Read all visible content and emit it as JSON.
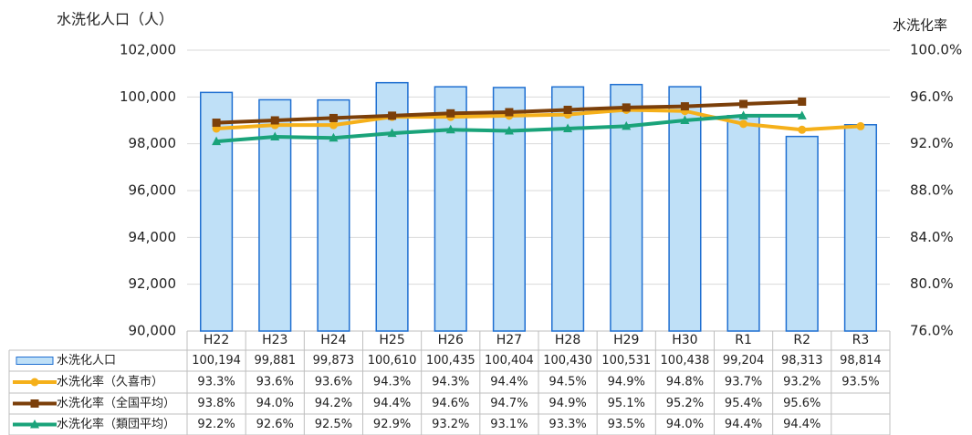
{
  "chart_data": {
    "type": "bar_line_table",
    "y_label": "水洗化人口（人）",
    "y2_label": "水洗化率",
    "categories": [
      "H22",
      "H23",
      "H24",
      "H25",
      "H26",
      "H27",
      "H28",
      "H29",
      "H30",
      "R1",
      "R2",
      "R3"
    ],
    "ylim": [
      90000,
      102000
    ],
    "yticks": [
      {
        "value": 90000,
        "label": "90,000"
      },
      {
        "value": 92000,
        "label": "92,000"
      },
      {
        "value": 94000,
        "label": "94,000"
      },
      {
        "value": 96000,
        "label": "96,000"
      },
      {
        "value": 98000,
        "label": "98,000"
      },
      {
        "value": 100000,
        "label": "100,000"
      },
      {
        "value": 102000,
        "label": "102,000"
      }
    ],
    "y2lim": [
      76,
      100
    ],
    "y2ticks": [
      {
        "value": 76,
        "label": "76.0%"
      },
      {
        "value": 80,
        "label": "80.0%"
      },
      {
        "value": 84,
        "label": "84.0%"
      },
      {
        "value": 88,
        "label": "88.0%"
      },
      {
        "value": 92,
        "label": "92.0%"
      },
      {
        "value": 96,
        "label": "96.0%"
      },
      {
        "value": 100,
        "label": "100.0%"
      }
    ],
    "grid": true,
    "series": [
      {
        "name": "水洗化人口",
        "type": "bar",
        "color": "#bfe0f7",
        "edge_color": "#1f6fd1",
        "values": [
          100194,
          99881,
          99873,
          100610,
          100435,
          100404,
          100430,
          100531,
          100438,
          99204,
          98313,
          98814
        ],
        "value_labels": [
          "100,194",
          "99,881",
          "99,873",
          "100,610",
          "100,435",
          "100,404",
          "100,430",
          "100,531",
          "100,438",
          "99,204",
          "98,313",
          "98,814"
        ]
      },
      {
        "name": "水洗化率（久喜市）",
        "type": "line",
        "marker": "circle",
        "axis": "y2",
        "color": "#f5b01a",
        "values": [
          93.3,
          93.6,
          93.6,
          94.3,
          94.3,
          94.4,
          94.5,
          94.9,
          94.8,
          93.7,
          93.2,
          93.5
        ],
        "value_labels": [
          "93.3%",
          "93.6%",
          "93.6%",
          "94.3%",
          "94.3%",
          "94.4%",
          "94.5%",
          "94.9%",
          "94.8%",
          "93.7%",
          "93.2%",
          "93.5%"
        ]
      },
      {
        "name": "水洗化率（全国平均）",
        "type": "line",
        "marker": "square",
        "axis": "y2",
        "color": "#7b3f0a",
        "values": [
          93.8,
          94.0,
          94.2,
          94.4,
          94.6,
          94.7,
          94.9,
          95.1,
          95.2,
          95.4,
          95.6,
          null
        ],
        "value_labels": [
          "93.8%",
          "94.0%",
          "94.2%",
          "94.4%",
          "94.6%",
          "94.7%",
          "94.9%",
          "95.1%",
          "95.2%",
          "95.4%",
          "95.6%",
          null
        ]
      },
      {
        "name": "水洗化率（類団平均）",
        "type": "line",
        "marker": "triangle",
        "axis": "y2",
        "color": "#1aa37a",
        "values": [
          92.2,
          92.6,
          92.5,
          92.9,
          93.2,
          93.1,
          93.3,
          93.5,
          94.0,
          94.4,
          94.4,
          null
        ],
        "value_labels": [
          "92.2%",
          "92.6%",
          "92.5%",
          "92.9%",
          "93.2%",
          "93.1%",
          "93.3%",
          "93.5%",
          "94.0%",
          "94.4%",
          "94.4%",
          null
        ]
      }
    ]
  }
}
